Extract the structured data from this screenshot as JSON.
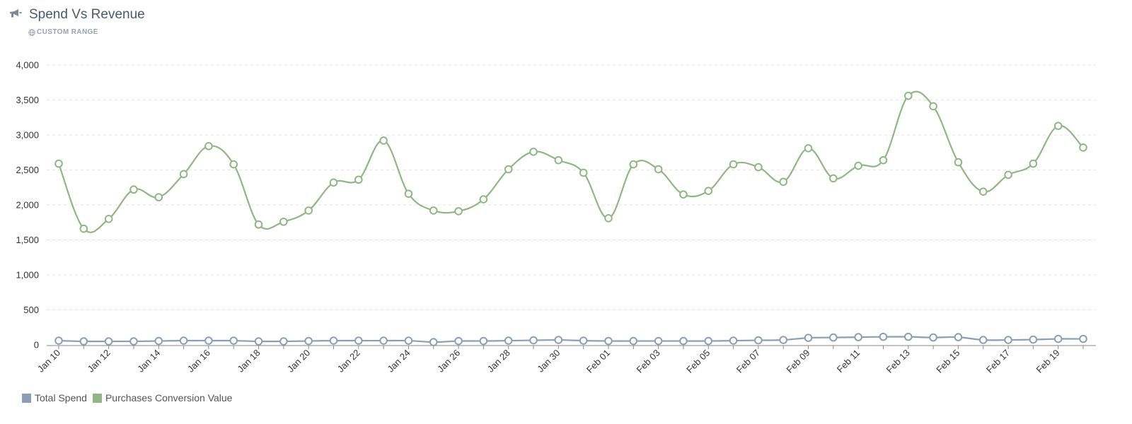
{
  "header": {
    "title": "Spend Vs Revenue",
    "title_icon": "megaphone-icon",
    "subtitle": "CUSTOM RANGE",
    "subtitle_icon": "globe-icon"
  },
  "colors": {
    "spend": "#8a9fb7",
    "revenue": "#8fb784",
    "grid": "#e6e6e6",
    "axis": "#8a8a8a",
    "tick_label": "#333333"
  },
  "chart_data": {
    "type": "line",
    "title": "Spend Vs Revenue",
    "x": [
      "Jan 10",
      "Jan 11",
      "Jan 12",
      "Jan 13",
      "Jan 14",
      "Jan 15",
      "Jan 16",
      "Jan 17",
      "Jan 18",
      "Jan 19",
      "Jan 20",
      "Jan 21",
      "Jan 22",
      "Jan 23",
      "Jan 24",
      "Jan 25",
      "Jan 26",
      "Jan 27",
      "Jan 28",
      "Jan 29",
      "Jan 30",
      "Jan 31",
      "Feb 01",
      "Feb 02",
      "Feb 03",
      "Feb 04",
      "Feb 05",
      "Feb 06",
      "Feb 07",
      "Feb 08",
      "Feb 09",
      "Feb 10",
      "Feb 11",
      "Feb 12",
      "Feb 13",
      "Feb 14",
      "Feb 15",
      "Feb 16",
      "Feb 17",
      "Feb 18",
      "Feb 19",
      "Feb 20"
    ],
    "x_tick_labels": [
      "Jan 10",
      "Jan 12",
      "Jan 14",
      "Jan 16",
      "Jan 18",
      "Jan 20",
      "Jan 22",
      "Jan 24",
      "Jan 26",
      "Jan 28",
      "Jan 30",
      "Feb 01",
      "Feb 03",
      "Feb 05",
      "Feb 07",
      "Feb 09",
      "Feb 11",
      "Feb 13",
      "Feb 15",
      "Feb 17",
      "Feb 19"
    ],
    "y_ticks": [
      "0",
      "500",
      "1,000",
      "1,500",
      "2,000",
      "2,500",
      "3,000",
      "3,500",
      "4,000"
    ],
    "ylim": [
      0,
      4000
    ],
    "grid": true,
    "legend_position": "bottom-left",
    "series": [
      {
        "name": "Total Spend",
        "color": "#8a9fb7",
        "values": [
          60,
          50,
          50,
          50,
          55,
          60,
          60,
          60,
          50,
          50,
          55,
          60,
          60,
          60,
          60,
          40,
          55,
          55,
          60,
          65,
          70,
          60,
          55,
          55,
          55,
          55,
          55,
          60,
          65,
          70,
          100,
          105,
          110,
          115,
          115,
          105,
          110,
          70,
          70,
          75,
          85,
          85
        ]
      },
      {
        "name": "Purchases Conversion Value",
        "color": "#8fb784",
        "values": [
          2590,
          1660,
          1800,
          2220,
          2110,
          2440,
          2840,
          2580,
          1720,
          1760,
          1920,
          2320,
          2360,
          2920,
          2160,
          1920,
          1910,
          2080,
          2510,
          2760,
          2640,
          2460,
          1810,
          2580,
          2510,
          2150,
          2200,
          2580,
          2540,
          2330,
          2810,
          2380,
          2560,
          2640,
          3560,
          3410,
          2610,
          2190,
          2430,
          2590,
          3130,
          2820
        ]
      }
    ]
  }
}
